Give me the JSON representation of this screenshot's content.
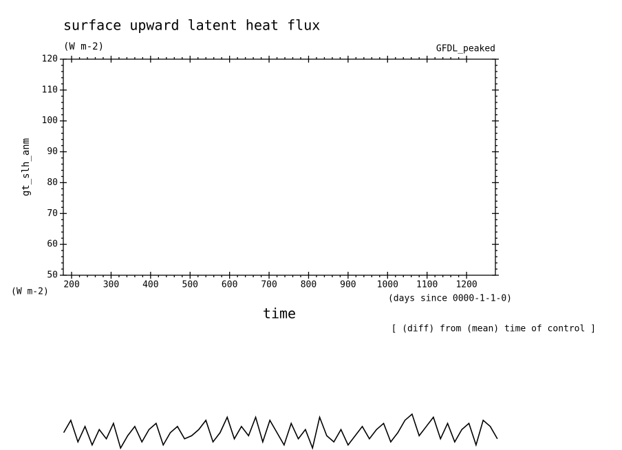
{
  "chart_data": {
    "type": "line",
    "title": "surface upward latent heat flux",
    "subtitle": "(W m-2)",
    "annotation": "GFDL_peaked",
    "ylabel": "gt_slh_anm",
    "yunits": "(W m-2)",
    "xlabel": "time",
    "xunits": "(days since 0000-1-1-0)",
    "note": "[ (diff) from (mean) time of control ]",
    "xlim": [
      179,
      1273
    ],
    "ylim": [
      50,
      120
    ],
    "xticks": [
      200,
      300,
      400,
      500,
      600,
      700,
      800,
      900,
      1000,
      1100,
      1200
    ],
    "yticks": [
      50,
      60,
      70,
      80,
      90,
      100,
      110,
      120
    ],
    "grid": false,
    "x": [
      180,
      198,
      216,
      234,
      252,
      270,
      288,
      306,
      324,
      342,
      360,
      378,
      396,
      414,
      432,
      450,
      468,
      486,
      504,
      522,
      540,
      558,
      576,
      594,
      612,
      630,
      648,
      666,
      684,
      702,
      720,
      738,
      756,
      774,
      792,
      810,
      828,
      846,
      864,
      882,
      900,
      918,
      936,
      954,
      972,
      990,
      1008,
      1026,
      1044,
      1062,
      1080,
      1098,
      1116,
      1134,
      1152,
      1170,
      1188,
      1206,
      1224,
      1242,
      1260,
      1278
    ],
    "series": [
      {
        "name": "gt_slh_anm",
        "color": "#000000",
        "values": [
          -1,
          3,
          -4,
          1,
          -5,
          0,
          -3,
          2,
          -6,
          -2,
          1,
          -4,
          0,
          2,
          -5,
          -1,
          1,
          -3,
          -2,
          0,
          3,
          -4,
          -1,
          4,
          -3,
          1,
          -2,
          4,
          -4,
          3,
          -1,
          -5,
          2,
          -3,
          0,
          -6,
          4,
          -2,
          -4,
          0,
          -5,
          -2,
          1,
          -3,
          0,
          2,
          -4,
          -1,
          3,
          5,
          -2,
          1,
          4,
          -3,
          2,
          -4,
          0,
          2,
          -5,
          3,
          1,
          -3
        ]
      }
    ]
  }
}
